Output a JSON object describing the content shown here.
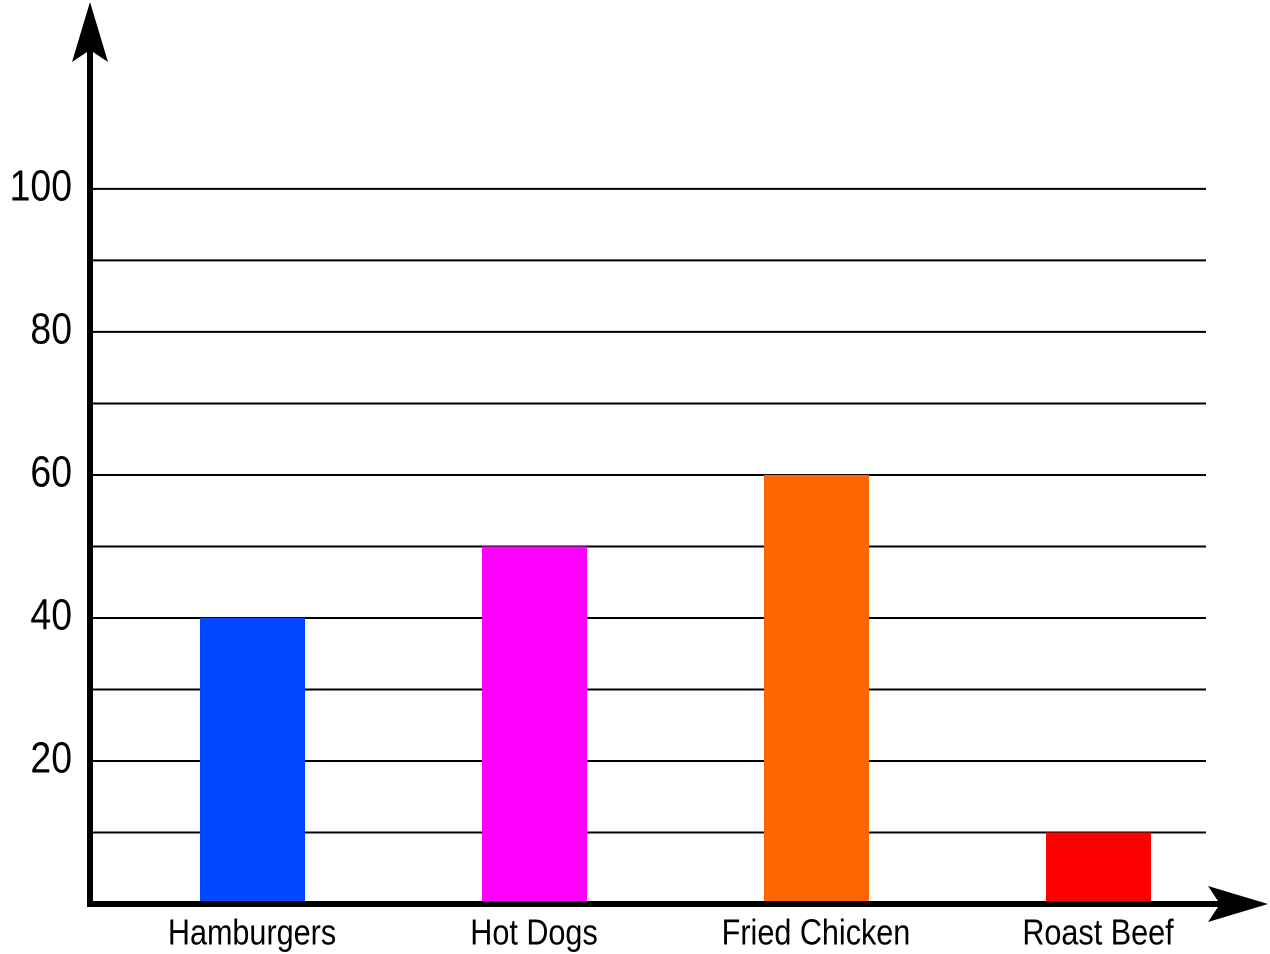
{
  "chart_data": {
    "type": "bar",
    "categories": [
      "Hamburgers",
      "Hot Dogs",
      "Fried Chicken",
      "Roast Beef"
    ],
    "values": [
      40,
      50,
      60,
      10
    ],
    "colors": [
      "#0047ff",
      "#ff00ff",
      "#ff6600",
      "#ff0000"
    ],
    "ylim": [
      0,
      126
    ],
    "yticks": [
      20,
      40,
      60,
      80,
      100
    ],
    "minor_gridlines": [
      10,
      30,
      50,
      70,
      90
    ],
    "grid": true
  }
}
